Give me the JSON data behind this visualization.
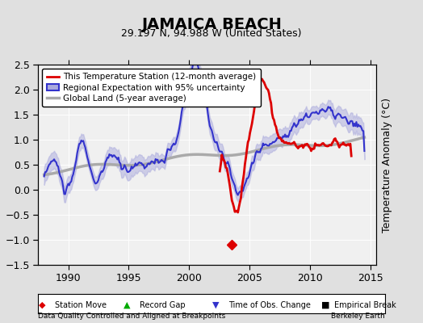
{
  "title": "JAMAICA BEACH",
  "subtitle": "29.197 N, 94.988 W (United States)",
  "ylabel": "Temperature Anomaly (°C)",
  "ylim": [
    -1.5,
    2.5
  ],
  "xlim": [
    1987.5,
    2015.5
  ],
  "yticks": [
    -1.5,
    -1.0,
    -0.5,
    0.0,
    0.5,
    1.0,
    1.5,
    2.0,
    2.5
  ],
  "xticks": [
    1990,
    1995,
    2000,
    2005,
    2010,
    2015
  ],
  "bg_color": "#e8e8e8",
  "plot_bg_color": "#f0f0f0",
  "grid_color": "#ffffff",
  "station_move_x": 2003.5,
  "station_move_y": -1.1,
  "footer_left": "Data Quality Controlled and Aligned at Breakpoints",
  "footer_right": "Berkeley Earth",
  "legend_items": [
    {
      "label": "This Temperature Station (12-month average)",
      "color": "#dd0000",
      "lw": 2
    },
    {
      "label": "Regional Expectation with 95% uncertainty",
      "color": "#3333cc",
      "lw": 2
    },
    {
      "label": "Global Land (5-year average)",
      "color": "#aaaaaa",
      "lw": 2.5
    }
  ]
}
